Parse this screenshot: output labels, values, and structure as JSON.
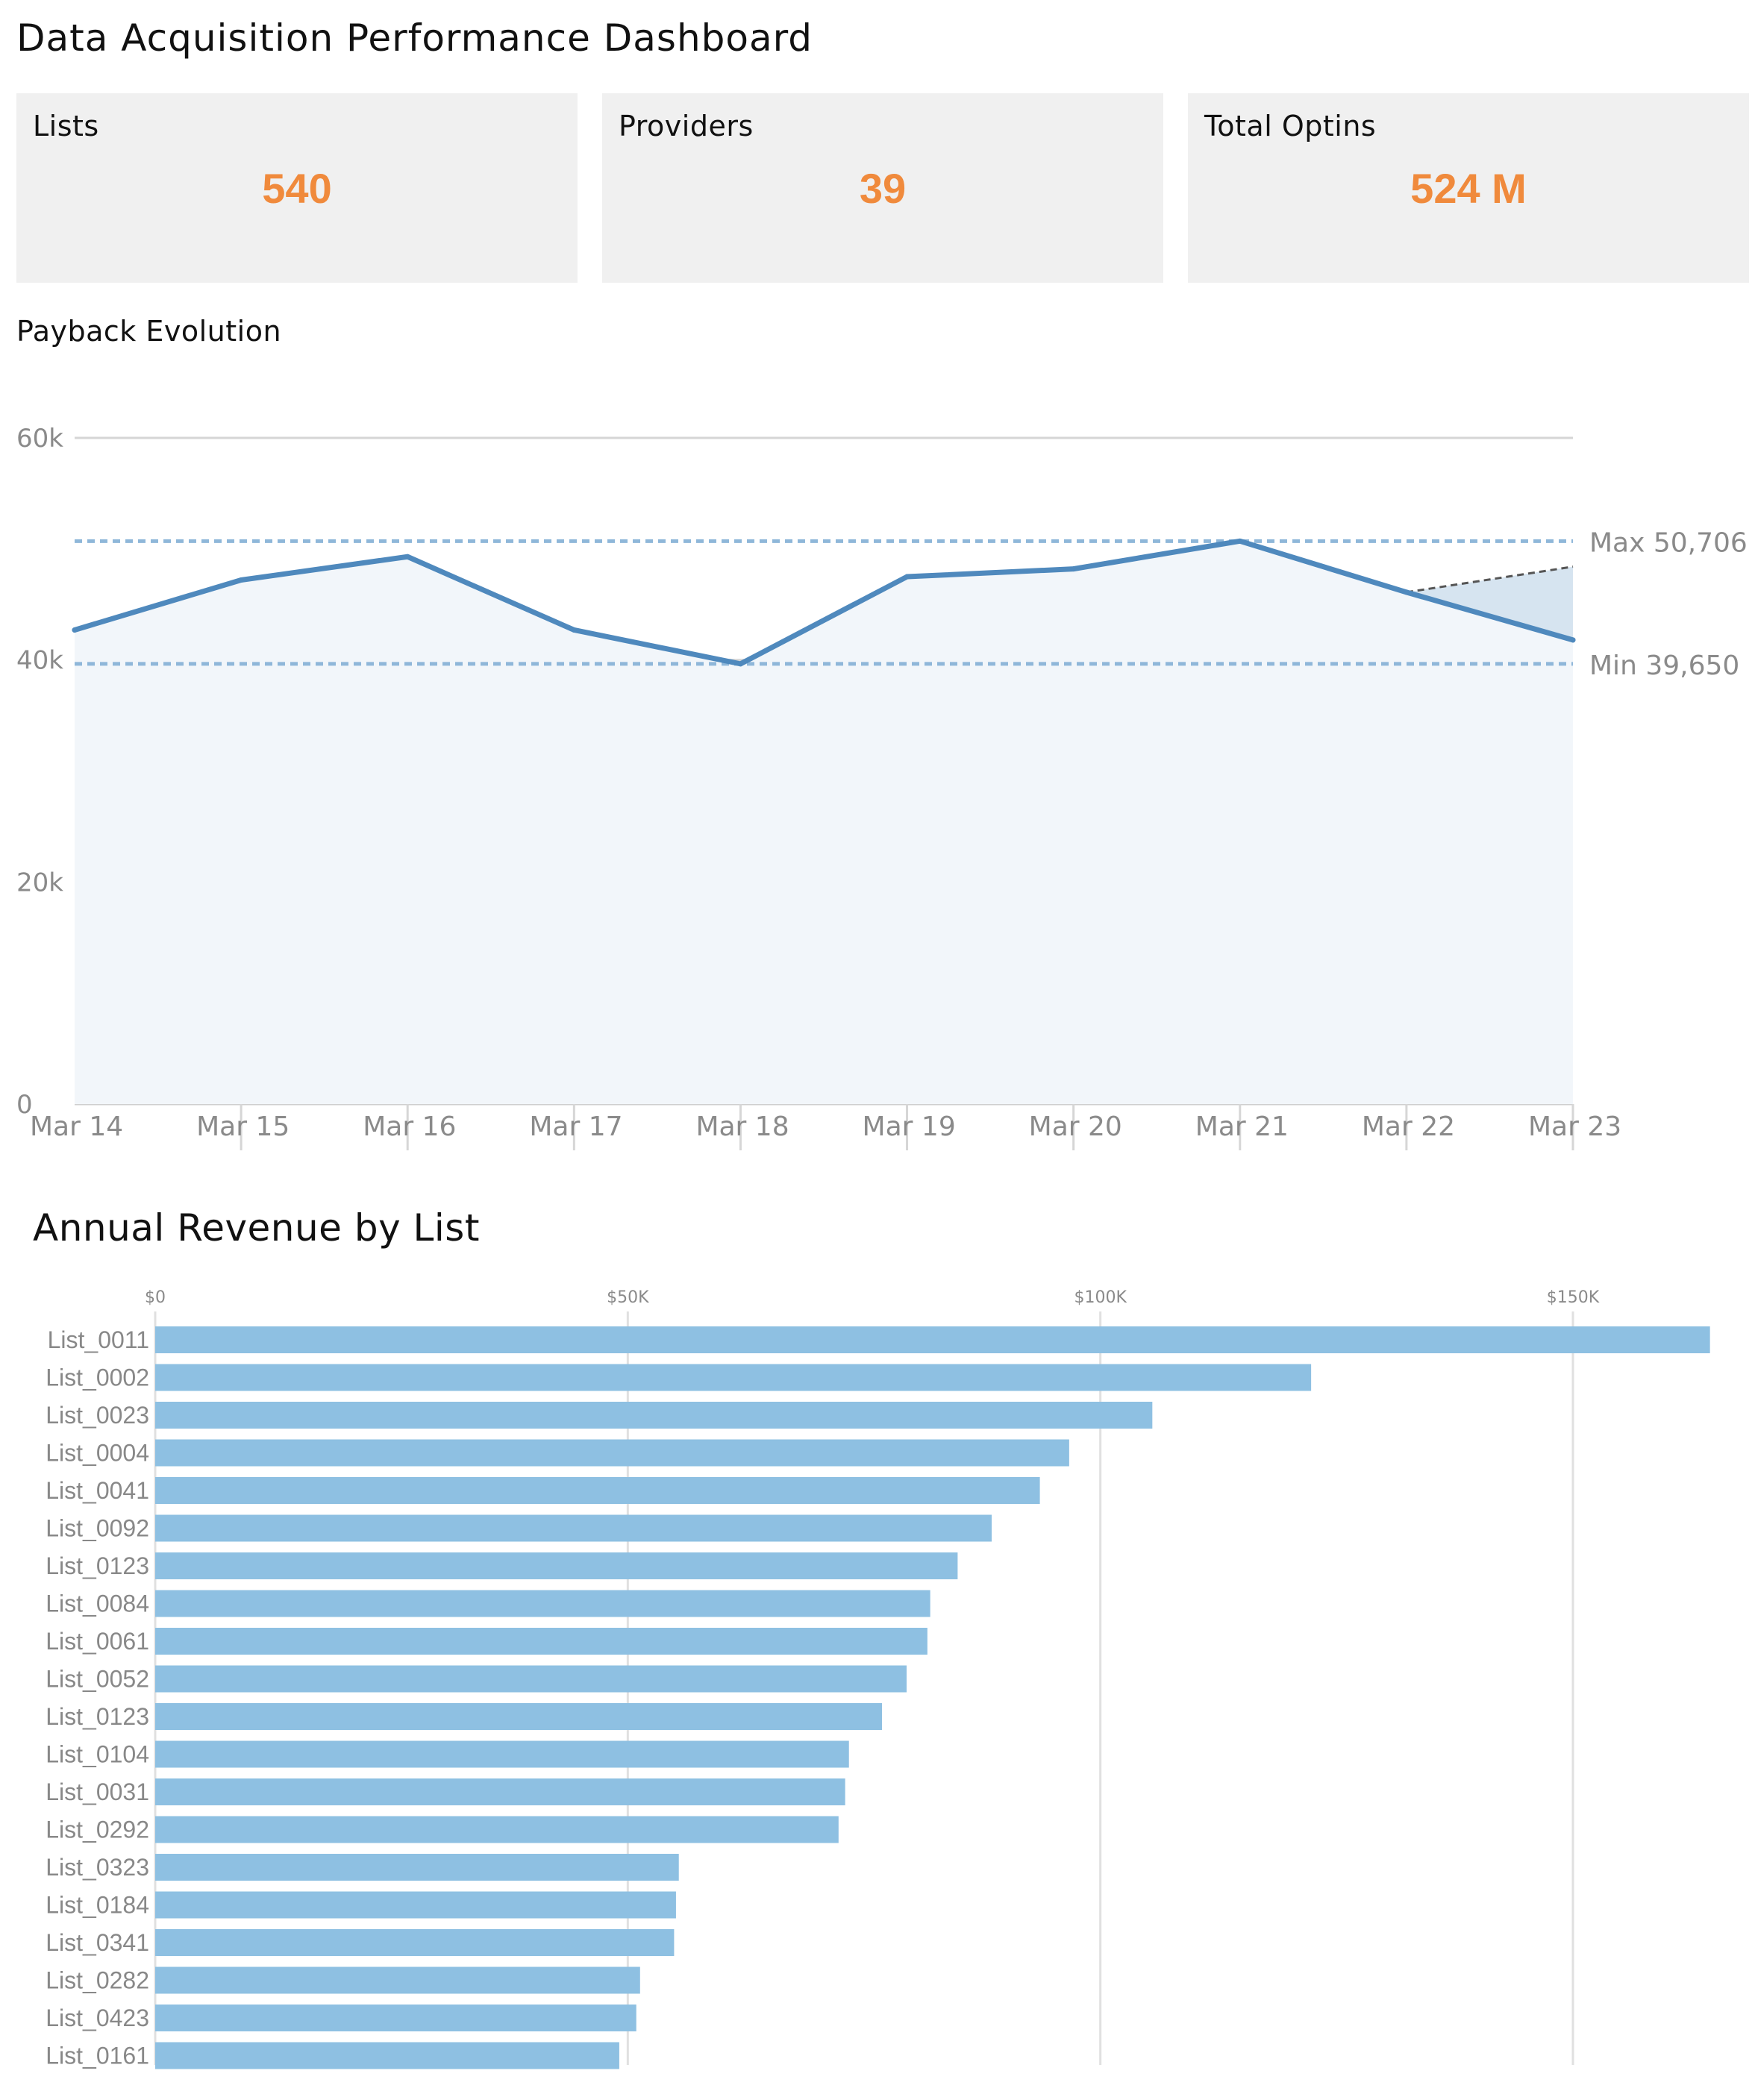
{
  "header": {
    "title": "Data Acquisition Performance Dashboard"
  },
  "kpis": [
    {
      "label": "Lists",
      "value": "540"
    },
    {
      "label": "Providers",
      "value": "39"
    },
    {
      "label": "Total Optins",
      "value": "524 M"
    }
  ],
  "colors": {
    "accent": "#f08a3c",
    "line": "#4f89bd",
    "bar": "#8ec0e2"
  },
  "chart_data": [
    {
      "type": "area",
      "title": "Payback Evolution",
      "x": [
        "Mar 14",
        "Mar 15",
        "Mar 16",
        "Mar 17",
        "Mar 18",
        "Mar 19",
        "Mar 20",
        "Mar 21",
        "Mar 22",
        "Mar 23"
      ],
      "series": [
        {
          "values": [
            42700,
            47200,
            49300,
            42700,
            39650,
            47500,
            48200,
            50706,
            46100,
            41800
          ]
        }
      ],
      "projection": {
        "from": "Mar 22",
        "to": "Mar 23",
        "values": [
          46100,
          48400
        ]
      },
      "reference_lines": [
        {
          "label": "Max 50,706",
          "value": 50706
        },
        {
          "label": "Min 39,650",
          "value": 39650
        }
      ],
      "yticks": [
        "60k",
        "40k",
        "20k",
        "0"
      ],
      "ytick_values": [
        60000,
        40000,
        20000,
        0
      ],
      "ylim": [
        0,
        60000
      ],
      "grid": true
    },
    {
      "type": "bar",
      "orientation": "horizontal",
      "title": "Annual Revenue by List",
      "categories": [
        "List_0011",
        "List_0002",
        "List_0023",
        "List_0004",
        "List_0041",
        "List_0092",
        "List_0123",
        "List_0084",
        "List_0061",
        "List_0052",
        "List_0123",
        "List_0104",
        "List_0031",
        "List_0292",
        "List_0323",
        "List_0184",
        "List_0341",
        "List_0282",
        "List_0423",
        "List_0161"
      ],
      "values": [
        164500,
        122300,
        105500,
        96700,
        93600,
        88500,
        84900,
        82000,
        81700,
        79500,
        76900,
        73400,
        73000,
        72300,
        55400,
        55100,
        54900,
        51300,
        50900,
        49100
      ],
      "xticks": [
        "$0",
        "$50K",
        "$100K",
        "$150K"
      ],
      "xtick_values": [
        0,
        50000,
        100000,
        150000
      ],
      "xlim": [
        0,
        165000
      ],
      "grid": true
    }
  ]
}
